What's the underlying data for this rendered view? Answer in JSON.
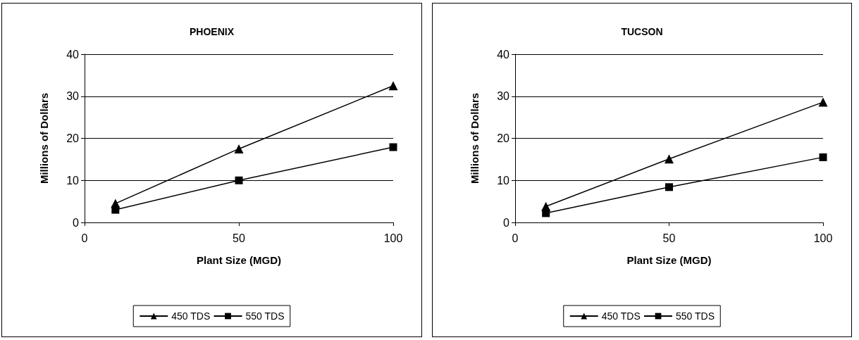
{
  "chart_data": [
    {
      "type": "line",
      "title": "PHOENIX",
      "xlabel": "Plant Size (MGD)",
      "ylabel": "Millions of Dollars",
      "x": [
        10,
        50,
        100
      ],
      "xlim": [
        0,
        100
      ],
      "xticks": [
        0,
        50,
        100
      ],
      "ylim": [
        0,
        40
      ],
      "yticks": [
        0,
        10,
        20,
        30,
        40
      ],
      "grid": "y",
      "legend": "bottom",
      "line_style": "solid",
      "series": [
        {
          "name": "450 TDS",
          "color": "#000000",
          "marker": "triangle",
          "values": [
            4.5,
            17.5,
            32.5
          ]
        },
        {
          "name": "550 TDS",
          "color": "#000000",
          "marker": "square",
          "values": [
            3.0,
            10.0,
            17.9
          ]
        }
      ]
    },
    {
      "type": "line",
      "title": "TUCSON",
      "xlabel": "Plant Size (MGD)",
      "ylabel": "Millions of Dollars",
      "x": [
        10,
        50,
        100
      ],
      "xlim": [
        0,
        100
      ],
      "xticks": [
        0,
        50,
        100
      ],
      "ylim": [
        0,
        40
      ],
      "yticks": [
        0,
        10,
        20,
        30,
        40
      ],
      "grid": "y",
      "legend": "bottom",
      "line_style": "solid",
      "series": [
        {
          "name": "450 TDS",
          "color": "#000000",
          "marker": "triangle",
          "values": [
            3.8,
            15.1,
            28.6
          ]
        },
        {
          "name": "550 TDS",
          "color": "#000000",
          "marker": "square",
          "values": [
            2.2,
            8.4,
            15.5
          ]
        }
      ]
    }
  ]
}
